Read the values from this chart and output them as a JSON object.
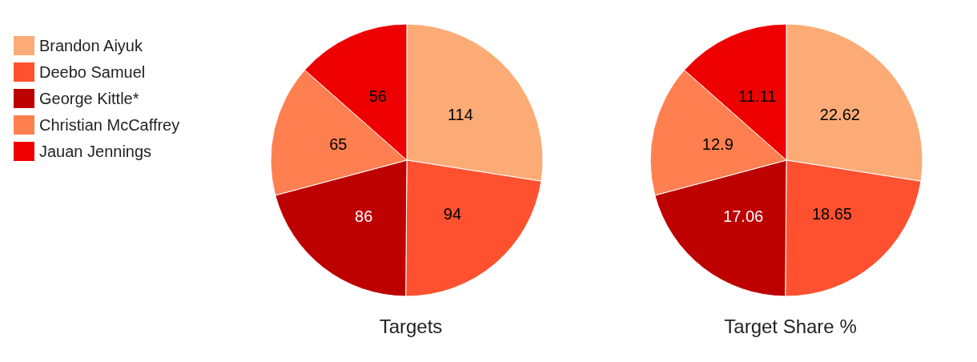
{
  "chart_data": [
    {
      "type": "pie",
      "title": "Targets",
      "categories": [
        "Brandon Aiyuk",
        "Deebo Samuel",
        "George Kittle*",
        "Christian McCaffrey",
        "Jauan Jennings"
      ],
      "values": [
        114,
        94,
        86,
        65,
        56
      ],
      "colors": [
        "#fdab76",
        "#ff512f",
        "#bd0000",
        "#ff7f50",
        "#ee0000"
      ],
      "data_labels": true,
      "legend": "left"
    },
    {
      "type": "pie",
      "title": "Target Share %",
      "categories": [
        null,
        null,
        null,
        null,
        null
      ],
      "values": [
        22.62,
        18.65,
        17.06,
        12.9,
        11.11
      ],
      "colors": [
        "#fdab76",
        "#ff512f",
        "#bd0000",
        "#ff7f50",
        "#ee0000"
      ],
      "data_labels": true
    }
  ]
}
